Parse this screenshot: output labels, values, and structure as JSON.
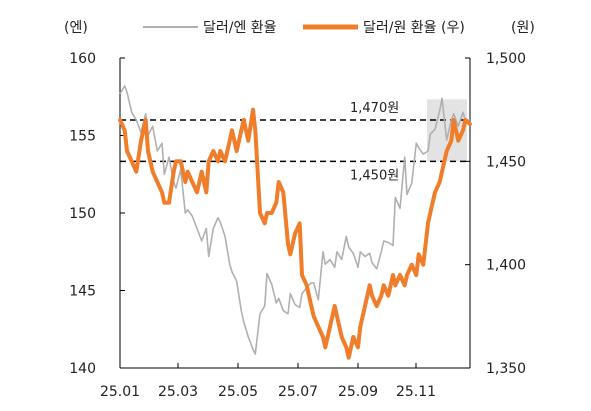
{
  "chart_data": {
    "type": "line",
    "left_unit": "(엔)",
    "right_unit": "(원)",
    "x_tick_labels": [
      "25.01",
      "25.03",
      "25.05",
      "25.07",
      "25.09",
      "25.11"
    ],
    "left_axis": {
      "min": 140,
      "max": 160,
      "ticks": [
        160,
        155,
        150,
        145,
        140
      ]
    },
    "right_axis": {
      "min": 1350,
      "max": 1500,
      "ticks": [
        "1,500",
        "1,450",
        "1,400",
        "1,350"
      ]
    },
    "reference_lines": [
      {
        "label": "1,470원",
        "value": 1470,
        "axis": "right"
      },
      {
        "label": "1,450원",
        "value": 1450,
        "axis": "right"
      }
    ],
    "highlight": {
      "value_min": 1450,
      "value_max": 1480,
      "axis": "right"
    },
    "series": [
      {
        "name": "달러/엔 환율",
        "axis": "left",
        "color": "#b0b0b0",
        "points": [
          [
            0,
            157.7
          ],
          [
            2,
            158.2
          ],
          [
            3,
            157.8
          ],
          [
            5,
            156.5
          ],
          [
            7,
            156.0
          ],
          [
            9,
            155.2
          ],
          [
            11,
            156.4
          ],
          [
            12,
            155.0
          ],
          [
            14,
            155.6
          ],
          [
            16,
            154.0
          ],
          [
            18,
            154.5
          ],
          [
            19,
            152.5
          ],
          [
            21,
            153.6
          ],
          [
            23,
            152.0
          ],
          [
            24,
            151.6
          ],
          [
            26,
            152.8
          ],
          [
            28,
            150.0
          ],
          [
            29,
            150.2
          ],
          [
            31,
            149.8
          ],
          [
            33,
            149.0
          ],
          [
            35,
            148.2
          ],
          [
            37,
            149.0
          ],
          [
            38,
            147.2
          ],
          [
            40,
            149.0
          ],
          [
            42,
            149.7
          ],
          [
            43,
            149.4
          ],
          [
            45,
            148.5
          ],
          [
            47,
            146.7
          ],
          [
            48,
            146.2
          ],
          [
            50,
            145.6
          ],
          [
            52,
            143.7
          ],
          [
            53,
            143.0
          ],
          [
            55,
            142.0
          ],
          [
            57,
            141.2
          ],
          [
            58,
            140.9
          ],
          [
            60,
            143.5
          ],
          [
            62,
            144.0
          ],
          [
            63,
            146.1
          ],
          [
            65,
            145.4
          ],
          [
            67,
            144.2
          ],
          [
            68,
            144.5
          ],
          [
            70,
            143.7
          ],
          [
            72,
            143.5
          ],
          [
            73,
            144.8
          ],
          [
            75,
            144.1
          ],
          [
            77,
            143.9
          ],
          [
            78,
            144.8
          ],
          [
            80,
            145.2
          ],
          [
            82,
            145.5
          ],
          [
            83,
            145.5
          ],
          [
            85,
            144.4
          ],
          [
            87,
            147.5
          ],
          [
            88,
            146.7
          ],
          [
            90,
            147.0
          ],
          [
            92,
            146.5
          ],
          [
            93,
            147.5
          ],
          [
            95,
            147.0
          ],
          [
            97,
            148.5
          ],
          [
            98,
            147.8
          ],
          [
            100,
            147.4
          ],
          [
            102,
            146.5
          ],
          [
            103,
            147.5
          ],
          [
            105,
            147.2
          ],
          [
            107,
            147.4
          ],
          [
            108,
            146.8
          ],
          [
            110,
            146.4
          ],
          [
            112,
            147.5
          ],
          [
            113,
            148.2
          ],
          [
            115,
            148.1
          ],
          [
            117,
            147.9
          ],
          [
            118,
            151.0
          ],
          [
            120,
            150.3
          ],
          [
            122,
            153.6
          ],
          [
            123,
            151.2
          ],
          [
            125,
            151.9
          ],
          [
            127,
            154.5
          ],
          [
            128,
            154.2
          ],
          [
            130,
            153.8
          ],
          [
            132,
            154.0
          ],
          [
            133,
            155.1
          ],
          [
            135,
            155.4
          ],
          [
            137,
            156.6
          ],
          [
            138,
            157.4
          ],
          [
            140,
            154.7
          ],
          [
            142,
            156.0
          ],
          [
            143,
            156.4
          ],
          [
            145,
            155.6
          ],
          [
            147,
            156.5
          ],
          [
            148,
            156.0
          ],
          [
            150,
            156.0
          ]
        ]
      },
      {
        "name": "달러/원 환율 (우)",
        "axis": "right",
        "color": "#f07d2a",
        "points": [
          [
            0,
            1470
          ],
          [
            2,
            1465
          ],
          [
            3,
            1455
          ],
          [
            5,
            1450
          ],
          [
            7,
            1445
          ],
          [
            9,
            1460
          ],
          [
            11,
            1470
          ],
          [
            12,
            1455
          ],
          [
            14,
            1445
          ],
          [
            16,
            1440
          ],
          [
            18,
            1435
          ],
          [
            19,
            1430
          ],
          [
            21,
            1430
          ],
          [
            23,
            1445
          ],
          [
            24,
            1450
          ],
          [
            26,
            1450
          ],
          [
            28,
            1440
          ],
          [
            29,
            1445
          ],
          [
            31,
            1440
          ],
          [
            33,
            1435
          ],
          [
            35,
            1445
          ],
          [
            37,
            1435
          ],
          [
            38,
            1450
          ],
          [
            40,
            1455
          ],
          [
            42,
            1450
          ],
          [
            43,
            1455
          ],
          [
            45,
            1450
          ],
          [
            47,
            1460
          ],
          [
            48,
            1465
          ],
          [
            50,
            1455
          ],
          [
            52,
            1465
          ],
          [
            53,
            1470
          ],
          [
            55,
            1460
          ],
          [
            57,
            1475
          ],
          [
            58,
            1465
          ],
          [
            60,
            1425
          ],
          [
            62,
            1420
          ],
          [
            63,
            1425
          ],
          [
            65,
            1425
          ],
          [
            67,
            1430
          ],
          [
            68,
            1440
          ],
          [
            70,
            1435
          ],
          [
            72,
            1410
          ],
          [
            73,
            1405
          ],
          [
            75,
            1415
          ],
          [
            77,
            1420
          ],
          [
            78,
            1395
          ],
          [
            80,
            1390
          ],
          [
            82,
            1380
          ],
          [
            83,
            1375
          ],
          [
            85,
            1370
          ],
          [
            87,
            1365
          ],
          [
            88,
            1360
          ],
          [
            90,
            1370
          ],
          [
            92,
            1380
          ],
          [
            93,
            1375
          ],
          [
            95,
            1365
          ],
          [
            97,
            1360
          ],
          [
            98,
            1355
          ],
          [
            100,
            1365
          ],
          [
            102,
            1360
          ],
          [
            103,
            1370
          ],
          [
            105,
            1380
          ],
          [
            107,
            1390
          ],
          [
            108,
            1385
          ],
          [
            110,
            1380
          ],
          [
            112,
            1385
          ],
          [
            113,
            1390
          ],
          [
            115,
            1385
          ],
          [
            117,
            1395
          ],
          [
            118,
            1390
          ],
          [
            120,
            1395
          ],
          [
            122,
            1390
          ],
          [
            123,
            1395
          ],
          [
            125,
            1400
          ],
          [
            127,
            1395
          ],
          [
            128,
            1405
          ],
          [
            130,
            1400
          ],
          [
            132,
            1420
          ],
          [
            133,
            1425
          ],
          [
            135,
            1435
          ],
          [
            137,
            1440
          ],
          [
            138,
            1445
          ],
          [
            140,
            1455
          ],
          [
            142,
            1460
          ],
          [
            143,
            1470
          ],
          [
            145,
            1460
          ],
          [
            147,
            1465
          ],
          [
            148,
            1470
          ],
          [
            150,
            1468
          ]
        ]
      }
    ],
    "legend_placement": "top",
    "grid": false
  }
}
